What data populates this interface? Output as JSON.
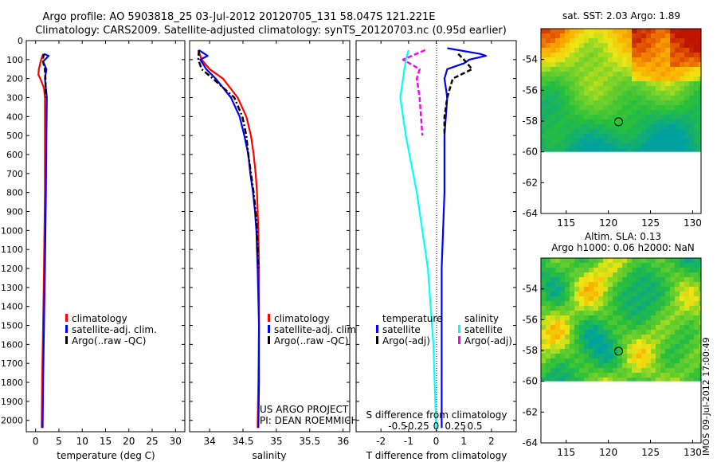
{
  "header": {
    "title_line1": "Argo profile: AO 5903818_25 03-Jul-2012 20120705_131 58.047S 121.221E",
    "title_line2": "Climatology: CARS2009. Satellite-adjusted climatology: synTS_20120703.nc (0.95d earlier)"
  },
  "colors": {
    "climatology": "#ff0000",
    "satellite": "#0000ff",
    "argo": "#000000",
    "s_satellite": "#00ffff",
    "s_argo": "#ff00ff"
  },
  "chart_data": [
    {
      "type": "line",
      "id": "temperature",
      "xlabel": "temperature (deg C)",
      "xlim": [
        -2,
        32
      ],
      "ylim": [
        2060,
        0
      ],
      "xticks": [
        "0",
        "5",
        "10",
        "15",
        "20",
        "25",
        "30"
      ],
      "xtick_values": [
        0,
        5,
        10,
        15,
        20,
        25,
        30
      ],
      "yticks": [
        "0",
        "100",
        "200",
        "300",
        "400",
        "500",
        "600",
        "700",
        "800",
        "900",
        "1000",
        "1100",
        "1200",
        "1300",
        "1400",
        "1500",
        "1600",
        "1700",
        "1800",
        "1900",
        "2000"
      ],
      "ytick_values": [
        0,
        100,
        200,
        300,
        400,
        500,
        600,
        700,
        800,
        900,
        1000,
        1100,
        1200,
        1300,
        1400,
        1500,
        1600,
        1700,
        1800,
        1900,
        2000
      ],
      "legend": [
        "climatology",
        "satellite-adj. clim.",
        "Argo(..raw -QC)"
      ],
      "series": [
        {
          "name": "climatology",
          "color": "#ff0000",
          "depth": [
            70,
            100,
            150,
            180,
            200,
            250,
            300,
            500,
            800,
            1000,
            1200,
            1500,
            1800,
            2040
          ],
          "values": [
            1.6,
            1.2,
            0.7,
            0.6,
            1.0,
            1.8,
            2.0,
            2.0,
            2.0,
            1.9,
            1.8,
            1.6,
            1.4,
            1.3
          ]
        },
        {
          "name": "satellite-adj. clim.",
          "color": "#0000ff",
          "depth": [
            70,
            80,
            110,
            150,
            200,
            250,
            300,
            500,
            800,
            1000,
            1200,
            1500,
            1800,
            2040
          ],
          "values": [
            1.8,
            2.8,
            1.6,
            2.3,
            2.0,
            2.2,
            2.4,
            2.3,
            2.2,
            2.1,
            2.0,
            1.8,
            1.6,
            1.5
          ]
        },
        {
          "name": "Argo(..raw -QC)",
          "color": "#000000",
          "depth": [
            70,
            100,
            150,
            200,
            300
          ],
          "values": [
            1.8,
            1.5,
            2.0,
            2.1,
            2.2
          ]
        }
      ]
    },
    {
      "type": "line",
      "id": "salinity",
      "xlabel": "salinity",
      "xlim": [
        33.7,
        36.1
      ],
      "ylim": [
        2060,
        0
      ],
      "xticks": [
        "34",
        "34.5",
        "35",
        "35.5",
        "36"
      ],
      "xtick_values": [
        34,
        34.5,
        35,
        35.5,
        36
      ],
      "legend": [
        "climatology",
        "satellite-adj. clim.",
        "Argo(..raw -QC)"
      ],
      "annotation": [
        "US ARGO PROJECT",
        "PI: DEAN ROEMMICH"
      ],
      "series": [
        {
          "name": "climatology",
          "color": "#ff0000",
          "depth": [
            50,
            100,
            150,
            200,
            300,
            400,
            500,
            600,
            700,
            800,
            900,
            1000,
            1200,
            1500,
            1800,
            2040
          ],
          "values": [
            33.83,
            33.88,
            34.0,
            34.2,
            34.42,
            34.55,
            34.62,
            34.66,
            34.69,
            34.71,
            34.72,
            34.73,
            34.74,
            34.74,
            34.73,
            34.72
          ]
        },
        {
          "name": "satellite-adj. clim.",
          "color": "#0000ff",
          "depth": [
            50,
            80,
            100,
            150,
            200,
            300,
            400,
            500,
            600,
            700,
            800,
            900,
            1000,
            1200,
            1500,
            1800,
            2040
          ],
          "values": [
            33.84,
            33.97,
            33.86,
            33.95,
            34.09,
            34.32,
            34.45,
            34.52,
            34.58,
            34.61,
            34.65,
            34.68,
            34.7,
            34.72,
            34.74,
            34.74,
            34.73
          ]
        },
        {
          "name": "Argo(..raw -QC)",
          "color": "#000000",
          "depth": [
            50,
            100,
            150,
            200,
            300,
            400,
            500,
            600,
            700,
            800,
            900,
            1000,
            1200
          ],
          "values": [
            33.84,
            33.83,
            33.88,
            34.05,
            34.37,
            34.49,
            34.55,
            34.58,
            34.62,
            34.66,
            34.69,
            34.71,
            34.73
          ]
        }
      ]
    },
    {
      "type": "line",
      "id": "difference",
      "xlabel": "T difference from climatology",
      "xlabel_top": "S difference from climatology",
      "xlim": [
        -2.9,
        2.9
      ],
      "ylim": [
        2060,
        0
      ],
      "xticks": [
        "-2",
        "-1",
        "0",
        "1",
        "2"
      ],
      "xtick_values": [
        -2,
        -1,
        0,
        1,
        2
      ],
      "sticks": [
        "-0.5",
        "-0.25",
        "0",
        "0.25",
        "0.5"
      ],
      "stick_values": [
        -0.5,
        -0.25,
        0,
        0.25,
        0.5
      ],
      "legend_temperature_title": "temperature",
      "legend_salinity_title": "salinity",
      "legend": [
        "satellite",
        "Argo(-adj)",
        "satellite",
        "Argo(-adj)"
      ],
      "series": [
        {
          "name": "T satellite",
          "color": "#0000ff",
          "depth": [
            40,
            70,
            80,
            100,
            120,
            150,
            200,
            300,
            500,
            800,
            1200,
            1600,
            2040
          ],
          "values": [
            0.4,
            1.6,
            1.8,
            1.2,
            1.0,
            0.4,
            0.3,
            0.4,
            0.3,
            0.3,
            0.2,
            0.2,
            0.2
          ]
        },
        {
          "name": "T Argo(-adj)",
          "color": "#000000",
          "depth": [
            70,
            100,
            150,
            200,
            300,
            400,
            500
          ],
          "values": [
            0.8,
            1.0,
            1.3,
            0.6,
            0.4,
            0.3,
            0.3
          ]
        },
        {
          "name": "S satellite",
          "color": "#00ffff",
          "depth": [
            50,
            100,
            200,
            300,
            500,
            800,
            1200,
            1600,
            2040
          ],
          "values": [
            -1.0,
            -1.1,
            -1.2,
            -1.3,
            -1.1,
            -0.7,
            -0.3,
            -0.1,
            0.0
          ]
        },
        {
          "name": "S Argo(-adj)",
          "color": "#ff00ff",
          "depth": [
            50,
            100,
            150,
            200,
            300,
            500
          ],
          "values": [
            -0.4,
            -1.2,
            -0.6,
            -0.7,
            -0.6,
            -0.5
          ]
        }
      ]
    },
    {
      "type": "heatmap",
      "id": "sst_map",
      "title": "sat. SST: 2.03  Argo: 1.89",
      "xlim": [
        112,
        131
      ],
      "ylim": [
        -64,
        -52
      ],
      "xticks": [
        "115",
        "120",
        "125",
        "130"
      ],
      "xtick_values": [
        115,
        120,
        125,
        130
      ],
      "yticks": [
        "-54",
        "-56",
        "-58",
        "-60",
        "-62",
        "-64"
      ],
      "ytick_values": [
        -54,
        -56,
        -58,
        -60,
        -62,
        -64
      ],
      "data_south_limit": -60,
      "marker": [
        121.221,
        -58.047
      ]
    },
    {
      "type": "heatmap",
      "id": "sla_map",
      "title_line1": "Altim. SLA: 0.13",
      "title_line2": "Argo h1000: 0.06 h2000: NaN",
      "xlim": [
        112,
        131
      ],
      "ylim": [
        -64,
        -52
      ],
      "xticks": [
        "115",
        "120",
        "125",
        "130"
      ],
      "xtick_values": [
        115,
        120,
        125,
        130
      ],
      "yticks": [
        "-54",
        "-56",
        "-58",
        "-60",
        "-62",
        "-64"
      ],
      "ytick_values": [
        -54,
        -56,
        -58,
        -60,
        -62,
        -64
      ],
      "data_south_limit": -60,
      "marker": [
        121.221,
        -58.047
      ]
    }
  ],
  "footer": {
    "stamp": "IMOS 09-Jul-2012 17:00:49"
  }
}
